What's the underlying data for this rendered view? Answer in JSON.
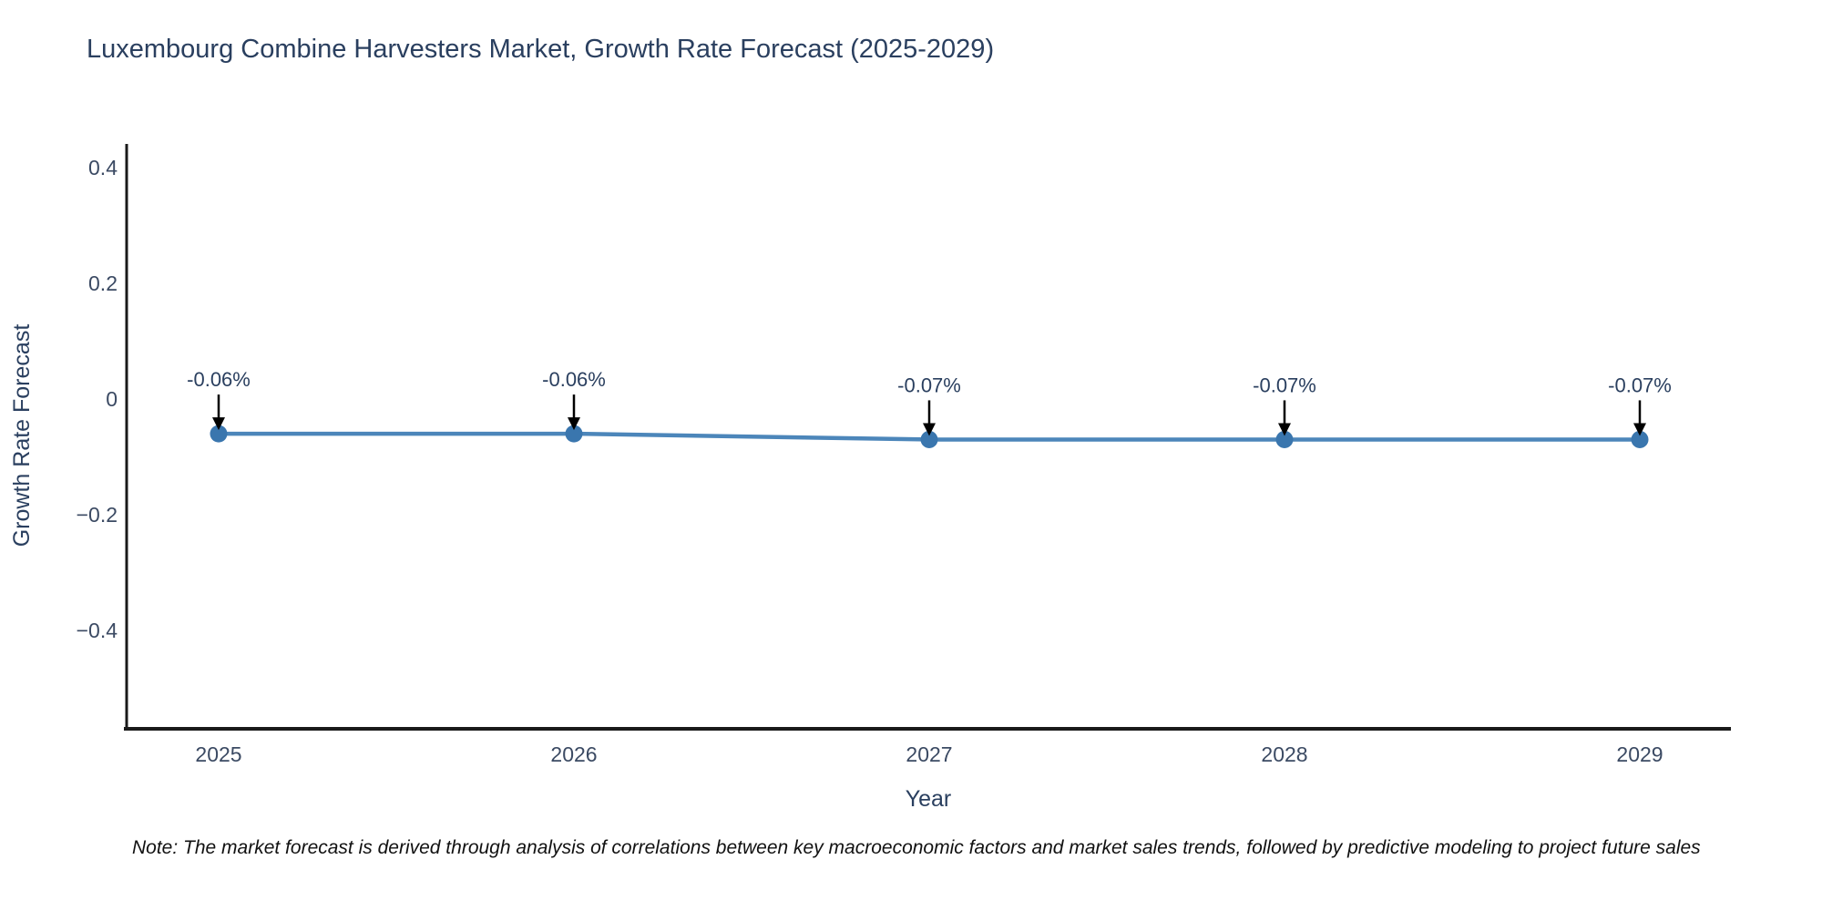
{
  "title": "Luxembourg Combine Harvesters Market, Growth Rate Forecast (2025-2029)",
  "footnote": "Note: The market forecast is derived through analysis of correlations between key macroeconomic factors and market sales trends, followed by predictive modeling to project future sales",
  "chart_data": {
    "type": "line",
    "title": "Luxembourg Combine Harvesters Market, Growth Rate Forecast (2025-2029)",
    "xlabel": "Year",
    "ylabel": "Growth Rate Forecast",
    "categories": [
      "2025",
      "2026",
      "2027",
      "2028",
      "2029"
    ],
    "values": [
      -0.06,
      -0.06,
      -0.07,
      -0.07,
      -0.07
    ],
    "point_labels": [
      "-0.06%",
      "-0.06%",
      "-0.07%",
      "-0.07%",
      "-0.07%"
    ],
    "y_ticks": [
      0.4,
      0.2,
      0,
      -0.2,
      -0.4
    ],
    "y_tick_labels": [
      "0.4",
      "0.2",
      "0",
      "−0.2",
      "−0.4"
    ],
    "ylim": [
      -0.57,
      0.44
    ],
    "grid": false,
    "legend": "none",
    "marker": "circle",
    "annotation_arrows": true,
    "colors": {
      "line": "#4c86ba",
      "marker": "#3a76ae",
      "axis": "#1a1a1a",
      "title_text": "#2a3f5f",
      "tick_text": "#3b4a63",
      "arrow": "#000000"
    }
  }
}
